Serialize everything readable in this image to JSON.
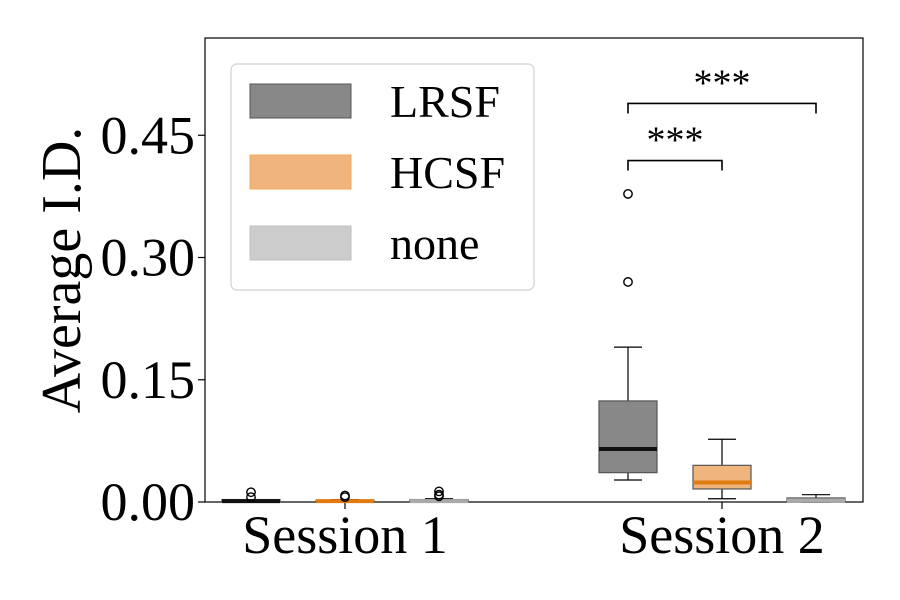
{
  "chart_data": {
    "type": "box",
    "title": "",
    "xlabel": "",
    "ylabel": "Average I.D.",
    "ylim": [
      0,
      0.57
    ],
    "yticks": [
      0.0,
      0.15,
      0.3,
      0.45
    ],
    "ytick_labels": [
      "0.00",
      "0.15",
      "0.30",
      "0.45"
    ],
    "categories": [
      "Session 1",
      "Session 2"
    ],
    "legend_position": "top-left",
    "grid": false,
    "series": [
      {
        "name": "LRSF",
        "color": "#888888",
        "median_color": "#111111",
        "boxes": [
          {
            "q1": 0.0,
            "median": 0.001,
            "q3": 0.003,
            "whisker_low": 0.0,
            "whisker_high": 0.003,
            "outliers": [
              0.006,
              0.012
            ]
          },
          {
            "q1": 0.036,
            "median": 0.065,
            "q3": 0.124,
            "whisker_low": 0.027,
            "whisker_high": 0.19,
            "outliers": [
              0.27,
              0.378
            ]
          }
        ]
      },
      {
        "name": "HCSF",
        "color": "#f0b57d",
        "median_color": "#e07b10",
        "boxes": [
          {
            "q1": 0.0,
            "median": 0.001,
            "q3": 0.002,
            "whisker_low": 0.0,
            "whisker_high": 0.003,
            "outliers": [
              0.006,
              0.008
            ]
          },
          {
            "q1": 0.016,
            "median": 0.024,
            "q3": 0.045,
            "whisker_low": 0.004,
            "whisker_high": 0.077,
            "outliers": []
          }
        ]
      },
      {
        "name": "none",
        "color": "#cccccc",
        "median_color": "#aaaaaa",
        "boxes": [
          {
            "q1": 0.0,
            "median": 0.001,
            "q3": 0.003,
            "whisker_low": 0.0,
            "whisker_high": 0.004,
            "outliers": [
              0.007,
              0.009,
              0.013
            ]
          },
          {
            "q1": 0.0,
            "median": 0.002,
            "q3": 0.005,
            "whisker_low": 0.0,
            "whisker_high": 0.009,
            "outliers": []
          }
        ]
      }
    ],
    "significance": [
      {
        "label": "***",
        "category": "Session 2",
        "from_series": 0,
        "to_series": 1,
        "y": 0.419
      },
      {
        "label": "***",
        "category": "Session 2",
        "from_series": 0,
        "to_series": 2,
        "y": 0.489
      }
    ]
  }
}
